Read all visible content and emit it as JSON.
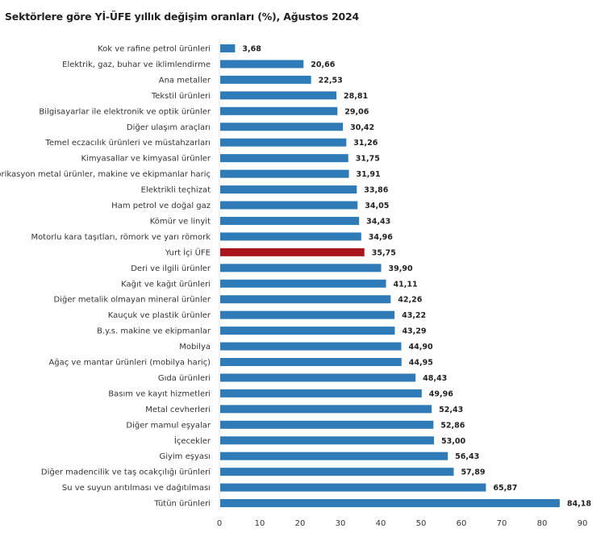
{
  "chart_data": {
    "type": "bar",
    "orientation": "horizontal",
    "title": "Sektörlere göre Yİ-ÜFE yıllık değişim oranları (%), Ağustos 2024",
    "xlabel": "",
    "ylabel": "",
    "xlim": [
      0,
      90
    ],
    "xticks": [
      "0",
      "10",
      "20",
      "30",
      "40",
      "50",
      "60",
      "70",
      "80",
      "90"
    ],
    "grid": false,
    "colors": {
      "default": "#2e7bb7",
      "highlight": "#a8161c"
    },
    "categories": [
      "Kok ve rafine petrol ürünleri",
      "Elektrik, gaz, buhar ve iklimlendirme",
      "Ana metaller",
      "Tekstil ürünleri",
      "Bilgisayarlar ile elektronik ve optik ürünler",
      "Diğer ulaşım araçları",
      "Temel eczacılık ürünleri ve müstahzarları",
      "Kimyasallar ve kimyasal ürünler",
      "Fabrikasyon metal ürünler, makine ve ekipmanlar hariç",
      "Elektrikli teçhizat",
      "Ham petrol ve doğal gaz",
      "Kömür ve linyit",
      "Motorlu kara taşıtları, römork ve yarı römork",
      "Yurt İçi ÜFE",
      "Deri ve ilgili ürünler",
      "Kağıt ve kağıt ürünleri",
      "Diğer metalik olmayan mineral ürünler",
      "Kauçuk ve plastik ürünler",
      "B.y.s. makine ve ekipmanlar",
      "Mobilya",
      "Ağaç ve mantar ürünleri (mobilya hariç)",
      "Gıda ürünleri",
      "Basım ve kayıt hizmetleri",
      "Metal cevherleri",
      "Diğer mamul eşyalar",
      "İçecekler",
      "Giyim eşyası",
      "Diğer madencilik ve taş ocakçılığı ürünleri",
      "Su ve suyun arıtılması ve dağıtılması",
      "Tütün ürünleri"
    ],
    "values": [
      3.68,
      20.66,
      22.53,
      28.81,
      29.06,
      30.42,
      31.26,
      31.75,
      31.91,
      33.86,
      34.05,
      34.43,
      34.96,
      35.75,
      39.9,
      41.11,
      42.26,
      43.22,
      43.29,
      44.9,
      44.95,
      48.43,
      49.96,
      52.43,
      52.86,
      53.0,
      56.43,
      57.89,
      65.87,
      84.18
    ],
    "labels": [
      "3,68",
      "20,66",
      "22,53",
      "28,81",
      "29,06",
      "30,42",
      "31,26",
      "31,75",
      "31,91",
      "33,86",
      "34,05",
      "34,43",
      "34,96",
      "35,75",
      "39,90",
      "41,11",
      "42,26",
      "43,22",
      "43,29",
      "44,90",
      "44,95",
      "48,43",
      "49,96",
      "52,43",
      "52,86",
      "53,00",
      "56,43",
      "57,89",
      "65,87",
      "84,18"
    ],
    "highlight_index": 13
  }
}
